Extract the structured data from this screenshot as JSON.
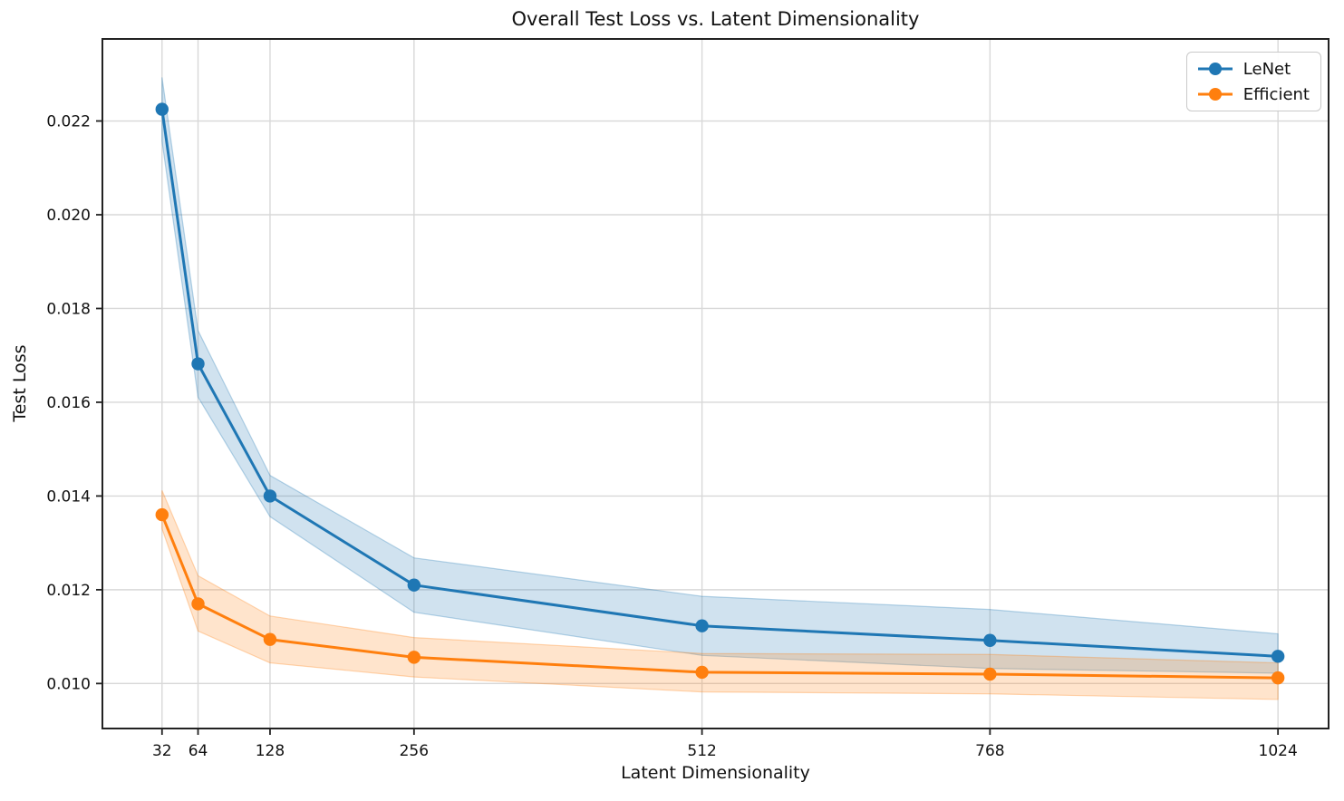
{
  "chart_data": {
    "type": "line",
    "title": "Overall Test Loss vs. Latent Dimensionality",
    "xlabel": "Latent Dimensionality",
    "ylabel": "Test Loss",
    "x": [
      32,
      64,
      128,
      256,
      512,
      768,
      1024
    ],
    "x_tick_labels": [
      "32",
      "64",
      "128",
      "256",
      "512",
      "768",
      "1024"
    ],
    "y_ticks": [
      0.01,
      0.012,
      0.014,
      0.016,
      0.018,
      0.02,
      0.022
    ],
    "y_tick_labels": [
      "0.010",
      "0.012",
      "0.014",
      "0.016",
      "0.018",
      "0.020",
      "0.022"
    ],
    "xlim": [
      -21,
      1069
    ],
    "ylim": [
      0.00904,
      0.02375
    ],
    "grid": true,
    "legend_position": "upper right",
    "series": [
      {
        "name": "LeNet",
        "color": "#1f77b4",
        "values": [
          0.02225,
          0.01682,
          0.014,
          0.0121,
          0.01123,
          0.01092,
          0.01058
        ],
        "band_upper": [
          0.02293,
          0.01753,
          0.01444,
          0.01268,
          0.01186,
          0.01158,
          0.01106
        ],
        "band_lower": [
          0.02157,
          0.01611,
          0.01356,
          0.01152,
          0.0106,
          0.01032,
          0.01022
        ]
      },
      {
        "name": "Efficient",
        "color": "#ff7f0e",
        "values": [
          0.0136,
          0.0117,
          0.01094,
          0.01056,
          0.01024,
          0.0102,
          0.01012
        ],
        "band_upper": [
          0.01412,
          0.0123,
          0.01144,
          0.01098,
          0.01064,
          0.01062,
          0.01044
        ],
        "band_lower": [
          0.0133,
          0.01112,
          0.01044,
          0.01014,
          0.00982,
          0.00978,
          0.00966
        ]
      }
    ],
    "colors": {
      "grid": "#d8d8d8",
      "spine": "#222222",
      "text": "#111111"
    }
  }
}
